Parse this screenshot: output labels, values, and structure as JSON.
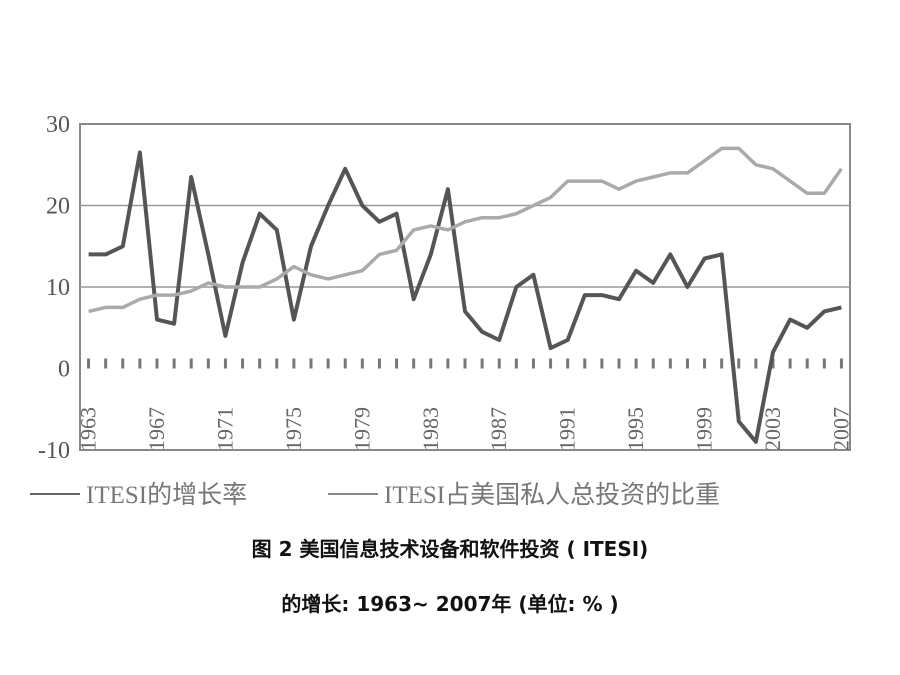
{
  "chart_data": {
    "type": "line",
    "y_ticks": [
      "30",
      "20",
      "10",
      "0",
      "-10"
    ],
    "ylim": [
      -10,
      30
    ],
    "x_range": [
      1962.5,
      2007.5
    ],
    "x_tick_labels": [
      "1963",
      "1967",
      "1971",
      "1975",
      "1979",
      "1983",
      "1987",
      "1991",
      "1995",
      "1999",
      "2003",
      "2007"
    ],
    "grid": "horizontal at 10, 20, 30",
    "legend_placement": "bottom",
    "legend": [
      "ITESI的增长率",
      "ITESI占美国私人总投资的比重"
    ],
    "series": [
      {
        "name": "ITESI的增长率",
        "color": "#555555",
        "x": [
          1963,
          1964,
          1965,
          1966,
          1967,
          1968,
          1969,
          1970,
          1971,
          1972,
          1973,
          1974,
          1975,
          1976,
          1977,
          1978,
          1979,
          1980,
          1981,
          1982,
          1983,
          1984,
          1985,
          1986,
          1987,
          1988,
          1989,
          1990,
          1991,
          1992,
          1993,
          1994,
          1995,
          1996,
          1997,
          1998,
          1999,
          2000,
          2001,
          2002,
          2003,
          2004,
          2005,
          2006,
          2007
        ],
        "values": [
          14,
          14,
          15,
          26.5,
          6,
          5.5,
          23.5,
          14,
          4,
          13,
          19,
          17,
          6,
          15,
          20,
          24.5,
          20,
          18,
          19,
          8.5,
          14,
          22,
          7,
          4.5,
          3.5,
          10,
          11.5,
          2.5,
          3.5,
          9,
          9,
          8.5,
          12,
          10.5,
          14,
          10,
          13.5,
          14,
          -6.5,
          -9,
          2,
          6,
          5,
          7,
          7.5
        ]
      },
      {
        "name": "ITESI占美国私人总投资的比重",
        "color": "#aaaaaa",
        "x": [
          1963,
          1964,
          1965,
          1966,
          1967,
          1968,
          1969,
          1970,
          1971,
          1972,
          1973,
          1974,
          1975,
          1976,
          1977,
          1978,
          1979,
          1980,
          1981,
          1982,
          1983,
          1984,
          1985,
          1986,
          1987,
          1988,
          1989,
          1990,
          1991,
          1992,
          1993,
          1994,
          1995,
          1996,
          1997,
          1998,
          1999,
          2000,
          2001,
          2002,
          2003,
          2004,
          2005,
          2006,
          2007
        ],
        "values": [
          7,
          7.5,
          7.5,
          8.5,
          9,
          9,
          9.5,
          10.5,
          10,
          10,
          10,
          11,
          12.5,
          11.5,
          11,
          11.5,
          12,
          14,
          14.5,
          17,
          17.5,
          17,
          18,
          18.5,
          18.5,
          19,
          20,
          21,
          23,
          23,
          23,
          22,
          23,
          23.5,
          24,
          24,
          25.5,
          27,
          27,
          25,
          24.5,
          23,
          21.5,
          21.5,
          24.5
        ]
      }
    ]
  },
  "caption": {
    "line1": "图 2 美国信息技术设备和软件投资 ( ITESI)",
    "line2": "的增长: 1963~ 2007年 (单位: % )"
  }
}
